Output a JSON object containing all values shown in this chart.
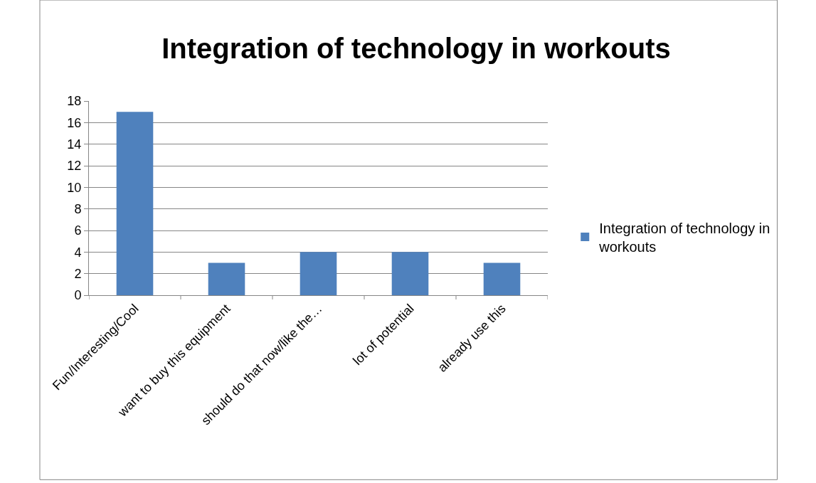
{
  "chart_data": {
    "type": "bar",
    "title": "Integration of technology in workouts",
    "categories": [
      "Fun/Interesting/Cool",
      "want to buy this equipment",
      "should do that now/like the…",
      "lot of potential",
      "already use this"
    ],
    "series": [
      {
        "name": "Integration of technology in workouts",
        "color": "#4f81bd",
        "values": [
          17,
          3,
          4,
          4,
          3
        ]
      }
    ],
    "ylim": [
      0,
      18
    ],
    "yticks": [
      0,
      2,
      4,
      6,
      8,
      10,
      12,
      14,
      16,
      18
    ],
    "grid": "y",
    "legend": "right"
  }
}
